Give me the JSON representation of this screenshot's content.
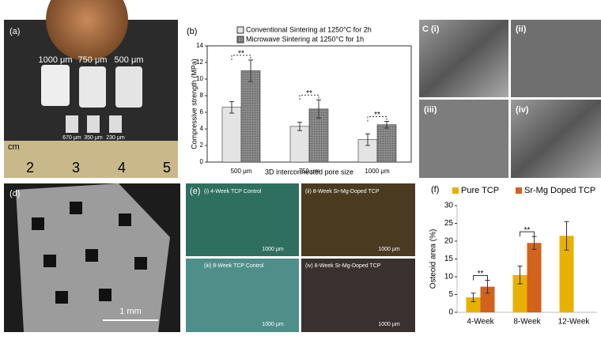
{
  "panels": {
    "a": {
      "label": "(a)",
      "sizes": [
        "1000 μm",
        "750 μm",
        "500 μm"
      ],
      "small_sizes": [
        "670 μm",
        "350 μm",
        "230 μm"
      ],
      "ruler_unit": "cm",
      "ruler_numbers": [
        "2",
        "3",
        "4",
        "5"
      ]
    },
    "c": {
      "labels": [
        "C (i)",
        "(ii)",
        "(iii)",
        "(iv)"
      ]
    },
    "d": {
      "label": "(d)",
      "scale": "1 mm"
    },
    "e": {
      "label": "(e)",
      "titles": [
        "(i) 4-Week TCP Control",
        "(ii) 8-Week Sr-Mg-Doped TCP",
        "(iii) 8-Week TCP Control",
        "(iv) 8-Week Sr-Mg-Doped TCP"
      ],
      "scale": "1000 μm"
    }
  },
  "chart_data": [
    {
      "type": "bar",
      "label": "(b)",
      "y_label": "Compressive strength (MPa)",
      "x_label": "3D interconnected pore size",
      "categories": [
        "500 μm",
        "750 μm",
        "1000 μm"
      ],
      "series": [
        {
          "name": "Conventional Sintering at 1250°C for 2h",
          "color": "#e4e4e4",
          "values": [
            6.6,
            4.3,
            2.7
          ],
          "errors": [
            0.7,
            0.5,
            0.7
          ]
        },
        {
          "name": "Microwave Sintering at 1250°C for 1h",
          "color": "#8c8c8c",
          "values": [
            11,
            6.4,
            4.5
          ],
          "errors": [
            1.3,
            1.1,
            0.4
          ]
        }
      ],
      "annotations": [
        "**",
        "**",
        "**"
      ],
      "ylim": [
        0,
        14
      ],
      "yticks": [
        0,
        2,
        4,
        6,
        8,
        10,
        12,
        14
      ]
    },
    {
      "type": "bar",
      "label": "(f)",
      "y_label": "Osteoid area (%)",
      "categories": [
        "4-Week",
        "8-Week",
        "12-Week"
      ],
      "series": [
        {
          "name": "Pure TCP",
          "color": "#e8b100",
          "values": [
            4.2,
            10.5,
            21.5
          ],
          "errors": [
            1.2,
            2.5,
            4
          ]
        },
        {
          "name": "Sr-Mg Doped TCP",
          "color": "#d3621c",
          "values": [
            7.2,
            19.5,
            null
          ],
          "errors": [
            1.8,
            1.8,
            null
          ]
        }
      ],
      "annotations": [
        "**",
        "**"
      ],
      "ylim": [
        0,
        30
      ],
      "yticks": [
        0,
        5,
        10,
        15,
        20,
        25,
        30
      ]
    }
  ]
}
